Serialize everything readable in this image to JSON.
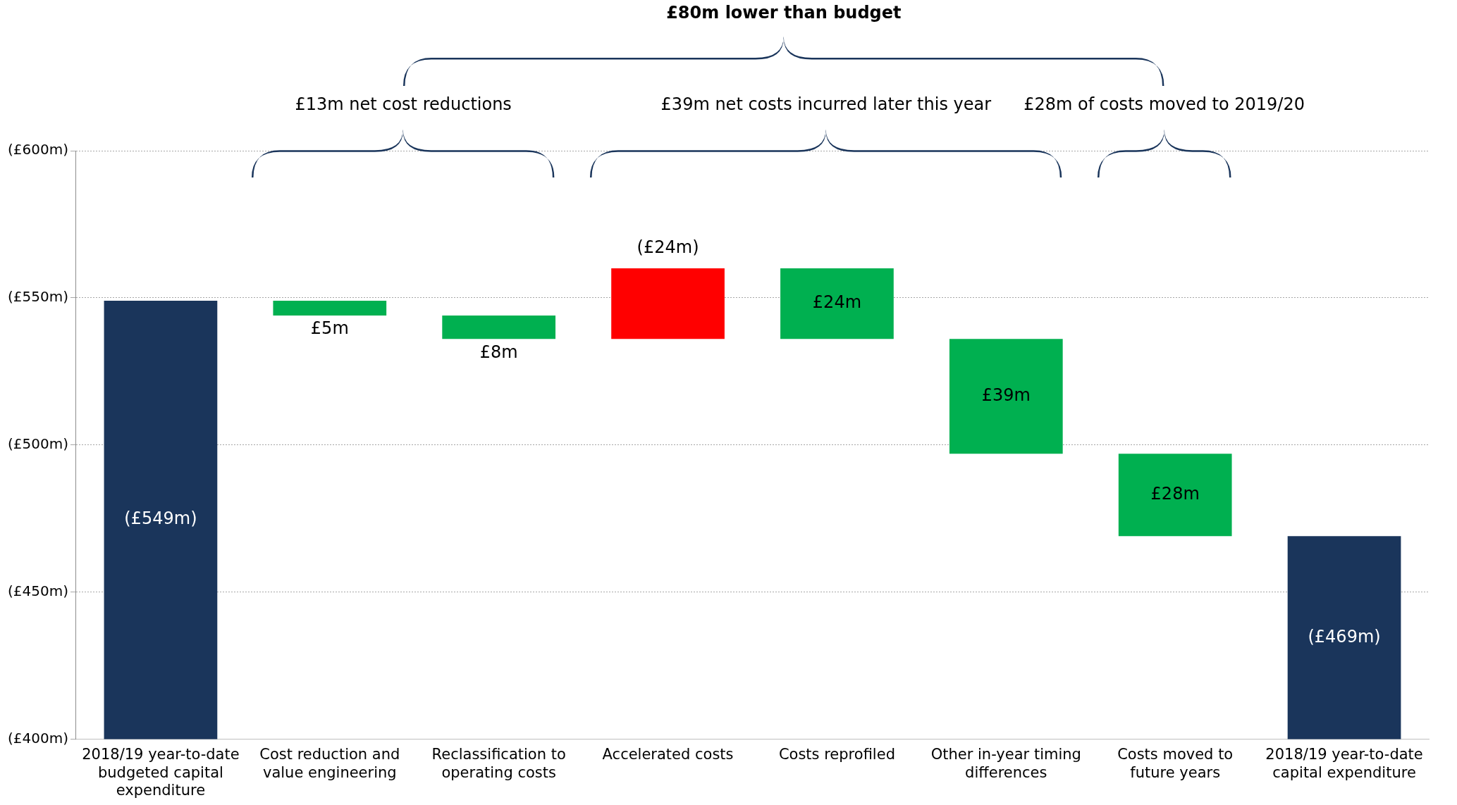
{
  "chart_data": {
    "type": "bar",
    "title": "£80m lower than budget",
    "categories": [
      "2018/19 year-to-date budgeted capital expenditure",
      "Cost reduction and value engineering",
      "Reclassification to operating costs",
      "Accelerated costs",
      "Costs reprofiled",
      "Other in-year timing differences",
      "Costs moved to future years",
      "2018/19 year-to-date capital expenditure"
    ],
    "values": [
      549,
      5,
      8,
      24,
      24,
      39,
      28,
      469
    ],
    "base": [
      null,
      544,
      536,
      536,
      536,
      497,
      469,
      null
    ],
    "colors": [
      "#1a355b",
      "#00b050",
      "#00b050",
      "#ff0000",
      "#00b050",
      "#00b050",
      "#00b050",
      "#1a355b"
    ],
    "value_labels": [
      "(£549m)",
      "£5m",
      "£8m",
      "(£24m)",
      "£24m",
      "£39m",
      "£28m",
      "(£469m)"
    ],
    "annotations": [
      "£13m net cost reductions",
      "£39m net costs incurred later this year",
      "£28m of costs moved to 2019/20"
    ],
    "ylim": [
      400,
      600
    ],
    "yticks": [
      {
        "value": 400,
        "label": "(£400m)"
      },
      {
        "value": 450,
        "label": "(£450m)"
      },
      {
        "value": 500,
        "label": "(£500m)"
      },
      {
        "value": 550,
        "label": "(£550m)"
      },
      {
        "value": 600,
        "label": "(£600m)"
      }
    ],
    "grid": "y",
    "legend": false
  }
}
